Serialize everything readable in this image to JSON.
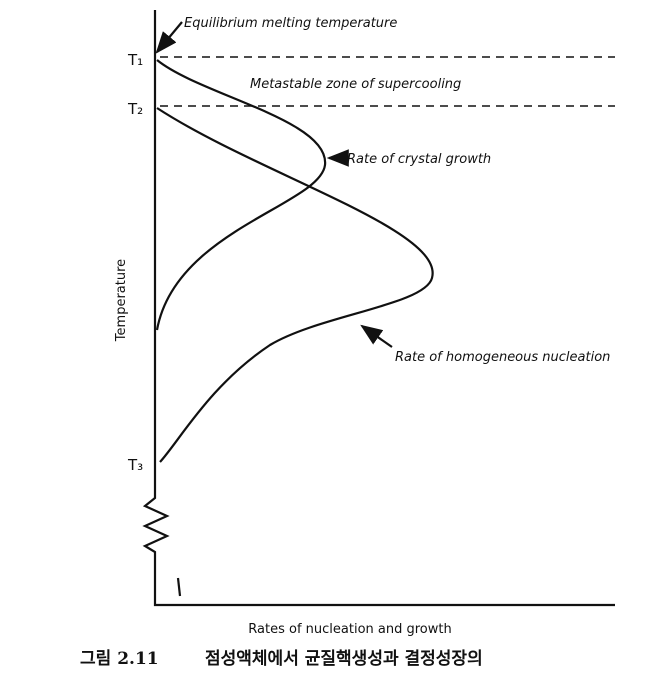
{
  "diagram": {
    "labels": {
      "equilibrium": "Equilibrium melting temperature",
      "metastable": "Metastable zone of supercooling",
      "crystal_growth": "Rate of crystal growth",
      "nucleation": "Rate of homogeneous nucleation",
      "y_axis": "Temperature",
      "x_axis": "Rates of nucleation and growth"
    },
    "temperatures": [
      "T₁",
      "T₂",
      "T₃"
    ],
    "caption": {
      "number": "그림 2.11",
      "text": "점성액체에서 균질핵생성과 결정성장의"
    }
  }
}
